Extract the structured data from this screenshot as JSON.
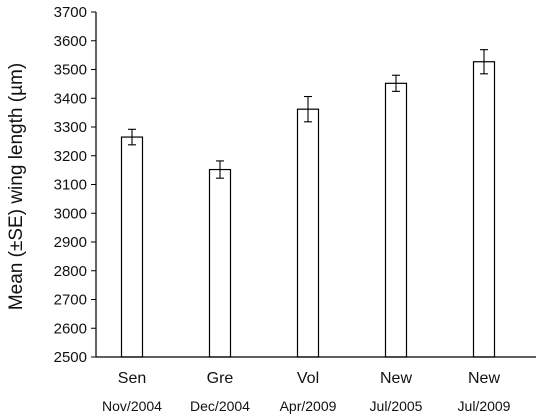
{
  "chart_data": {
    "type": "bar",
    "title": "",
    "xlabel": "",
    "ylabel": "Mean (±SE) wing length (µm)",
    "ylim": [
      2500,
      3700
    ],
    "ytick_step": 100,
    "yticks": [
      "2500",
      "2600",
      "2700",
      "2800",
      "2900",
      "3000",
      "3100",
      "3200",
      "3300",
      "3400",
      "3500",
      "3600",
      "3700"
    ],
    "categories": [
      {
        "label": "Sen",
        "sublabel": "Nov/2004"
      },
      {
        "label": "Gre",
        "sublabel": "Dec/2004"
      },
      {
        "label": "Vol",
        "sublabel": "Apr/2009"
      },
      {
        "label": "New",
        "sublabel": "Jul/2005"
      },
      {
        "label": "New",
        "sublabel": "Jul/2009"
      }
    ],
    "values": [
      3265,
      3152,
      3362,
      3452,
      3527
    ],
    "errors": [
      27,
      30,
      44,
      28,
      42
    ],
    "grid": false,
    "bar_fill": "#ffffff",
    "bar_stroke": "#000000"
  }
}
